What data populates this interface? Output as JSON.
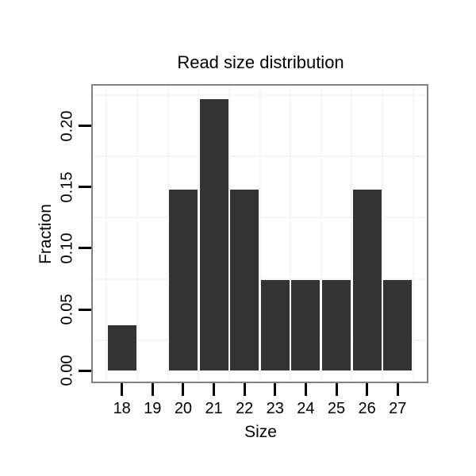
{
  "chart_data": {
    "type": "bar",
    "title": "Read size distribution",
    "xlabel": "Size",
    "ylabel": "Fraction",
    "x": [
      18,
      19,
      20,
      21,
      22,
      23,
      24,
      25,
      26,
      27
    ],
    "values": [
      0.037,
      0,
      0.148,
      0.222,
      0.148,
      0.074,
      0.074,
      0.074,
      0.148,
      0.074
    ],
    "xtick_labels": [
      "18",
      "19",
      "20",
      "21",
      "22",
      "23",
      "24",
      "25",
      "26",
      "27"
    ],
    "ytick_values": [
      0,
      0.05,
      0.1,
      0.15,
      0.2
    ],
    "ytick_labels": [
      "0.00",
      "0.05",
      "0.10",
      "0.15",
      "0.20"
    ],
    "xlim": [
      17.05,
      27.95
    ],
    "ylim": [
      -0.009,
      0.233
    ],
    "bar_width": 0.93,
    "legend": "none",
    "grid": "faint minor gridlines only, at midpoints between ticks",
    "minor_x": [
      17.5,
      18.5,
      19.5,
      20.5,
      21.5,
      22.5,
      23.5,
      24.5,
      25.5,
      26.5,
      27.5
    ],
    "minor_y": [
      0.025,
      0.075,
      0.125,
      0.175,
      0.225
    ],
    "colors": {
      "bar_fill": "#333333",
      "panel_border": "#828282",
      "gridline": "#f6f6f6",
      "axis_tick": "#000000",
      "text": "#000000",
      "background": "#ffffff"
    }
  }
}
